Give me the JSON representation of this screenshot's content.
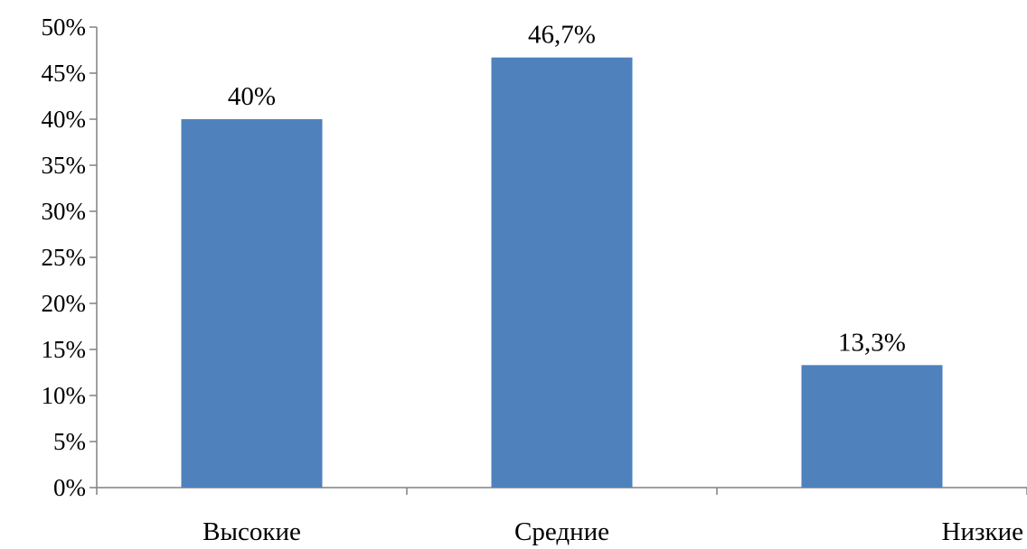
{
  "chart_data": {
    "type": "bar",
    "categories": [
      "Высокие",
      "Средние",
      "Низкие"
    ],
    "values": [
      40,
      46.7,
      13.3
    ],
    "data_labels": [
      "40%",
      "46,7%",
      "13,3%"
    ],
    "ylim": [
      0,
      50
    ],
    "yticks": [
      0,
      5,
      10,
      15,
      20,
      25,
      30,
      35,
      40,
      45,
      50
    ],
    "ytick_labels": [
      "0%",
      "5%",
      "10%",
      "15%",
      "20%",
      "25%",
      "30%",
      "35%",
      "40%",
      "45%",
      "50%"
    ],
    "grid": false,
    "legend": "none",
    "bar_color": "#4f81bd"
  }
}
